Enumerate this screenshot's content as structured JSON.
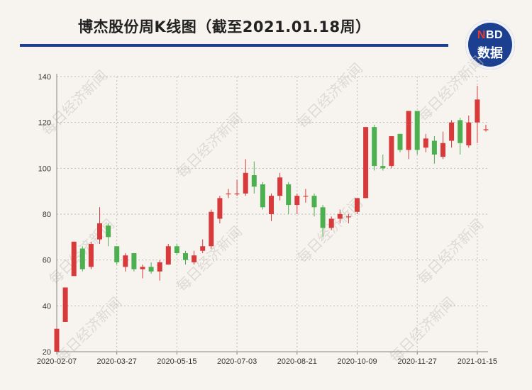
{
  "header": {
    "title": "博杰股份周K线图（截至2021.01.18周）",
    "logo_top": "NBD",
    "logo_bottom": "数据"
  },
  "watermark": "每日经济新闻",
  "chart_data": {
    "type": "candlestick",
    "title": "博杰股份周K线图（截至2021.01.18周）",
    "xlabel": "",
    "ylabel": "",
    "ylim": [
      20,
      140
    ],
    "yticks": [
      20,
      40,
      60,
      80,
      100,
      120,
      140
    ],
    "xtick_labels": [
      "2020-02-07",
      "2020-03-27",
      "2020-05-15",
      "2020-07-03",
      "2020-08-21",
      "2020-10-09",
      "2020-11-27",
      "2021-01-15"
    ],
    "grid": true,
    "colors": {
      "up": "#d8393a",
      "down": "#4caf50",
      "grid": "#bdbdbd",
      "axis": "#888888"
    },
    "candles": [
      {
        "date": "2020-02-07",
        "open": 20,
        "close": 30,
        "high": 30,
        "low": 20
      },
      {
        "date": "2020-02-14",
        "open": 33,
        "close": 48,
        "high": 48,
        "low": 33
      },
      {
        "date": "2020-02-21",
        "open": 53,
        "close": 68,
        "high": 68,
        "low": 53
      },
      {
        "date": "2020-02-28",
        "open": 65,
        "close": 56,
        "high": 66,
        "low": 55
      },
      {
        "date": "2020-03-06",
        "open": 57,
        "close": 67,
        "high": 68,
        "low": 56
      },
      {
        "date": "2020-03-13",
        "open": 69,
        "close": 76,
        "high": 83,
        "low": 67
      },
      {
        "date": "2020-03-20",
        "open": 75,
        "close": 70,
        "high": 76,
        "low": 66
      },
      {
        "date": "2020-03-27",
        "open": 66,
        "close": 59,
        "high": 66,
        "low": 58
      },
      {
        "date": "2020-04-03",
        "open": 57,
        "close": 62,
        "high": 63,
        "low": 55
      },
      {
        "date": "2020-04-10",
        "open": 63,
        "close": 56,
        "high": 63,
        "low": 55
      },
      {
        "date": "2020-04-17",
        "open": 56,
        "close": 57,
        "high": 58,
        "low": 52
      },
      {
        "date": "2020-04-24",
        "open": 57,
        "close": 55,
        "high": 59,
        "low": 54
      },
      {
        "date": "2020-05-01",
        "open": 55,
        "close": 59,
        "high": 60,
        "low": 51
      },
      {
        "date": "2020-05-08",
        "open": 58,
        "close": 66,
        "high": 67,
        "low": 58
      },
      {
        "date": "2020-05-15",
        "open": 66,
        "close": 63,
        "high": 67,
        "low": 62
      },
      {
        "date": "2020-05-22",
        "open": 63,
        "close": 60,
        "high": 64,
        "low": 58
      },
      {
        "date": "2020-05-29",
        "open": 59,
        "close": 62,
        "high": 64,
        "low": 58
      },
      {
        "date": "2020-06-05",
        "open": 64,
        "close": 66,
        "high": 69,
        "low": 63
      },
      {
        "date": "2020-06-12",
        "open": 66,
        "close": 81,
        "high": 82,
        "low": 65
      },
      {
        "date": "2020-06-19",
        "open": 78,
        "close": 87,
        "high": 88,
        "low": 76
      },
      {
        "date": "2020-06-26",
        "open": 89,
        "close": 89,
        "high": 91,
        "low": 87
      },
      {
        "date": "2020-07-03",
        "open": 89,
        "close": 89,
        "high": 95,
        "low": 88
      },
      {
        "date": "2020-07-10",
        "open": 89,
        "close": 98,
        "high": 104,
        "low": 88
      },
      {
        "date": "2020-07-17",
        "open": 97,
        "close": 92,
        "high": 103,
        "low": 89
      },
      {
        "date": "2020-07-24",
        "open": 93,
        "close": 83,
        "high": 94,
        "low": 82
      },
      {
        "date": "2020-07-31",
        "open": 80,
        "close": 88,
        "high": 89,
        "low": 77
      },
      {
        "date": "2020-08-07",
        "open": 88,
        "close": 96,
        "high": 98,
        "low": 86
      },
      {
        "date": "2020-08-14",
        "open": 93,
        "close": 84,
        "high": 94,
        "low": 80
      },
      {
        "date": "2020-08-21",
        "open": 84,
        "close": 88,
        "high": 89,
        "low": 80
      },
      {
        "date": "2020-08-28",
        "open": 88,
        "close": 88,
        "high": 91,
        "low": 85
      },
      {
        "date": "2020-09-04",
        "open": 88,
        "close": 83,
        "high": 89,
        "low": 79
      },
      {
        "date": "2020-09-11",
        "open": 83,
        "close": 74,
        "high": 84,
        "low": 70
      },
      {
        "date": "2020-09-18",
        "open": 74,
        "close": 78,
        "high": 79,
        "low": 73
      },
      {
        "date": "2020-09-25",
        "open": 78,
        "close": 80,
        "high": 82,
        "low": 76
      },
      {
        "date": "2020-10-02",
        "open": 79,
        "close": 79,
        "high": 80,
        "low": 76
      },
      {
        "date": "2020-10-09",
        "open": 81,
        "close": 87,
        "high": 87,
        "low": 80
      },
      {
        "date": "2020-10-16",
        "open": 87,
        "close": 118,
        "high": 118,
        "low": 87
      },
      {
        "date": "2020-10-23",
        "open": 118,
        "close": 101,
        "high": 119,
        "low": 99
      },
      {
        "date": "2020-10-30",
        "open": 101,
        "close": 100,
        "high": 106,
        "low": 99
      },
      {
        "date": "2020-11-06",
        "open": 101,
        "close": 114,
        "high": 114,
        "low": 100
      },
      {
        "date": "2020-11-13",
        "open": 115,
        "close": 108,
        "high": 115,
        "low": 107
      },
      {
        "date": "2020-11-20",
        "open": 108,
        "close": 125,
        "high": 125,
        "low": 104
      },
      {
        "date": "2020-11-27",
        "open": 125,
        "close": 108,
        "high": 125,
        "low": 106
      },
      {
        "date": "2020-12-04",
        "open": 109,
        "close": 113,
        "high": 115,
        "low": 107
      },
      {
        "date": "2020-12-11",
        "open": 112,
        "close": 106,
        "high": 114,
        "low": 102
      },
      {
        "date": "2020-12-18",
        "open": 105,
        "close": 111,
        "high": 116,
        "low": 104
      },
      {
        "date": "2020-12-25",
        "open": 112,
        "close": 120,
        "high": 121,
        "low": 109
      },
      {
        "date": "2021-01-01",
        "open": 121,
        "close": 111,
        "high": 122,
        "low": 106
      },
      {
        "date": "2021-01-08",
        "open": 110,
        "close": 120,
        "high": 123,
        "low": 109
      },
      {
        "date": "2021-01-15",
        "open": 120,
        "close": 130,
        "high": 136,
        "low": 111
      },
      {
        "date": "2021-01-18",
        "open": 117,
        "close": 117,
        "high": 119,
        "low": 116
      }
    ]
  }
}
